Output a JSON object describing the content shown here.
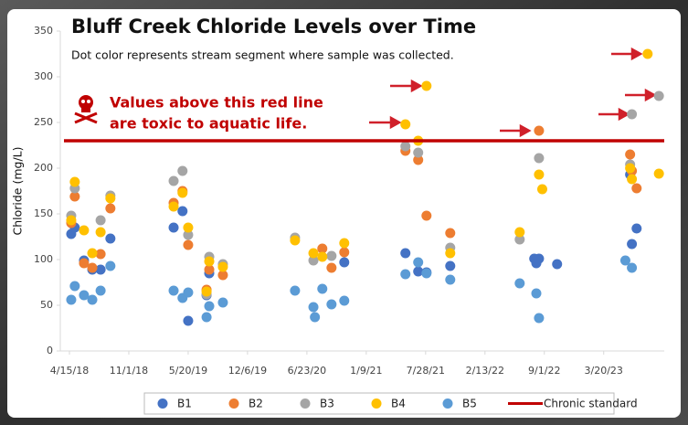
{
  "chart_data": {
    "type": "scatter",
    "title_bold": "Bluff Creek",
    "title_rest": "Chloride Levels over Time",
    "subtitle": "Dot color represents stream segment where sample was collected.",
    "annotation": [
      "Values above this red line",
      "are toxic to aquatic life."
    ],
    "y_label": "Chloride (mg/L)",
    "ylim": [
      0,
      350
    ],
    "yticks": [
      0,
      50,
      100,
      150,
      200,
      250,
      300,
      350
    ],
    "xlim": [
      "4/15/18",
      "10/10/23"
    ],
    "xticks": [
      "4/15/18",
      "11/1/18",
      "5/20/19",
      "12/6/19",
      "6/23/20",
      "1/9/21",
      "7/28/21",
      "2/13/22",
      "9/1/22",
      "3/20/23"
    ],
    "reference": {
      "name": "Chronic standard",
      "value": 230,
      "color": "#c00000"
    },
    "series": [
      {
        "name": "B1",
        "color": "#4472c4",
        "x": [
          "4/21/18",
          "5/3/18",
          "6/3/18",
          "7/1/18",
          "7/29/18",
          "8/31/18",
          "4/1/19",
          "5/1/19",
          "5/20/19",
          "7/21/19",
          "7/30/19",
          "10/27/20",
          "5/21/21",
          "7/3/21",
          "7/31/21",
          "10/19/21",
          "7/29/22",
          "8/5/22",
          "8/14/22",
          "10/14/22",
          "6/17/23",
          "6/23/23",
          "7/9/23"
        ],
        "values": [
          128,
          135,
          99,
          89,
          89,
          123,
          135,
          153,
          33,
          61,
          85,
          97,
          107,
          87,
          86,
          93,
          101,
          96,
          101,
          95,
          193,
          117,
          134
        ]
      },
      {
        "name": "B2",
        "color": "#ed7d31",
        "x": [
          "4/21/18",
          "5/3/18",
          "6/3/18",
          "7/1/18",
          "7/29/18",
          "8/31/18",
          "4/1/19",
          "5/1/19",
          "5/20/19",
          "7/21/19",
          "7/30/19",
          "9/14/19",
          "8/14/20",
          "9/14/20",
          "10/27/20",
          "5/21/21",
          "7/3/21",
          "7/31/21",
          "10/19/21",
          "8/14/22",
          "6/17/23",
          "6/23/23",
          "7/9/23"
        ],
        "values": [
          140,
          169,
          96,
          91,
          106,
          156,
          162,
          175,
          116,
          67,
          89,
          83,
          112,
          91,
          108,
          219,
          209,
          148,
          129,
          241,
          215,
          197,
          178
        ]
      },
      {
        "name": "B3",
        "color": "#a5a5a5",
        "x": [
          "4/21/18",
          "5/3/18",
          "7/29/18",
          "8/31/18",
          "4/1/19",
          "5/1/19",
          "5/20/19",
          "7/21/19",
          "7/30/19",
          "9/14/19",
          "5/14/20",
          "7/15/20",
          "9/14/20",
          "5/21/21",
          "7/3/21",
          "10/19/21",
          "6/10/22",
          "8/14/22",
          "6/23/23",
          "6/17/23",
          "9/22/23"
        ],
        "values": [
          148,
          178,
          143,
          170,
          186,
          197,
          127,
          62,
          103,
          95,
          124,
          99,
          104,
          224,
          217,
          113,
          122,
          211,
          259,
          204,
          279
        ]
      },
      {
        "name": "B4",
        "color": "#ffc000",
        "x": [
          "4/21/18",
          "5/3/18",
          "6/3/18",
          "7/1/18",
          "7/29/18",
          "8/31/18",
          "4/1/19",
          "5/1/19",
          "5/20/19",
          "7/21/19",
          "7/30/19",
          "9/14/19",
          "5/14/20",
          "7/15/20",
          "8/14/20",
          "10/27/20",
          "5/21/21",
          "7/31/21",
          "7/3/21",
          "10/19/21",
          "6/10/22",
          "8/14/22",
          "8/25/22",
          "8/15/23",
          "6/17/23",
          "6/23/23",
          "9/22/23"
        ],
        "values": [
          143,
          185,
          132,
          107,
          130,
          167,
          158,
          173,
          135,
          65,
          98,
          92,
          121,
          107,
          103,
          118,
          248,
          290,
          230,
          107,
          130,
          193,
          177,
          325,
          200,
          188,
          194
        ]
      },
      {
        "name": "B5",
        "color": "#5b9bd5",
        "x": [
          "4/21/18",
          "5/3/18",
          "6/3/18",
          "7/1/18",
          "7/29/18",
          "8/31/18",
          "4/1/19",
          "5/1/19",
          "5/20/19",
          "7/21/19",
          "7/30/19",
          "9/14/19",
          "5/14/20",
          "7/15/20",
          "7/20/20",
          "8/14/20",
          "9/14/20",
          "10/27/20",
          "5/21/21",
          "7/3/21",
          "7/31/21",
          "10/19/21",
          "6/10/22",
          "8/5/22",
          "8/14/22",
          "6/1/23",
          "6/23/23"
        ],
        "values": [
          56,
          71,
          61,
          56,
          66,
          93,
          66,
          58,
          64,
          37,
          49,
          53,
          66,
          48,
          37,
          68,
          51,
          55,
          84,
          97,
          85,
          78,
          74,
          63,
          36,
          99,
          91
        ]
      }
    ]
  }
}
